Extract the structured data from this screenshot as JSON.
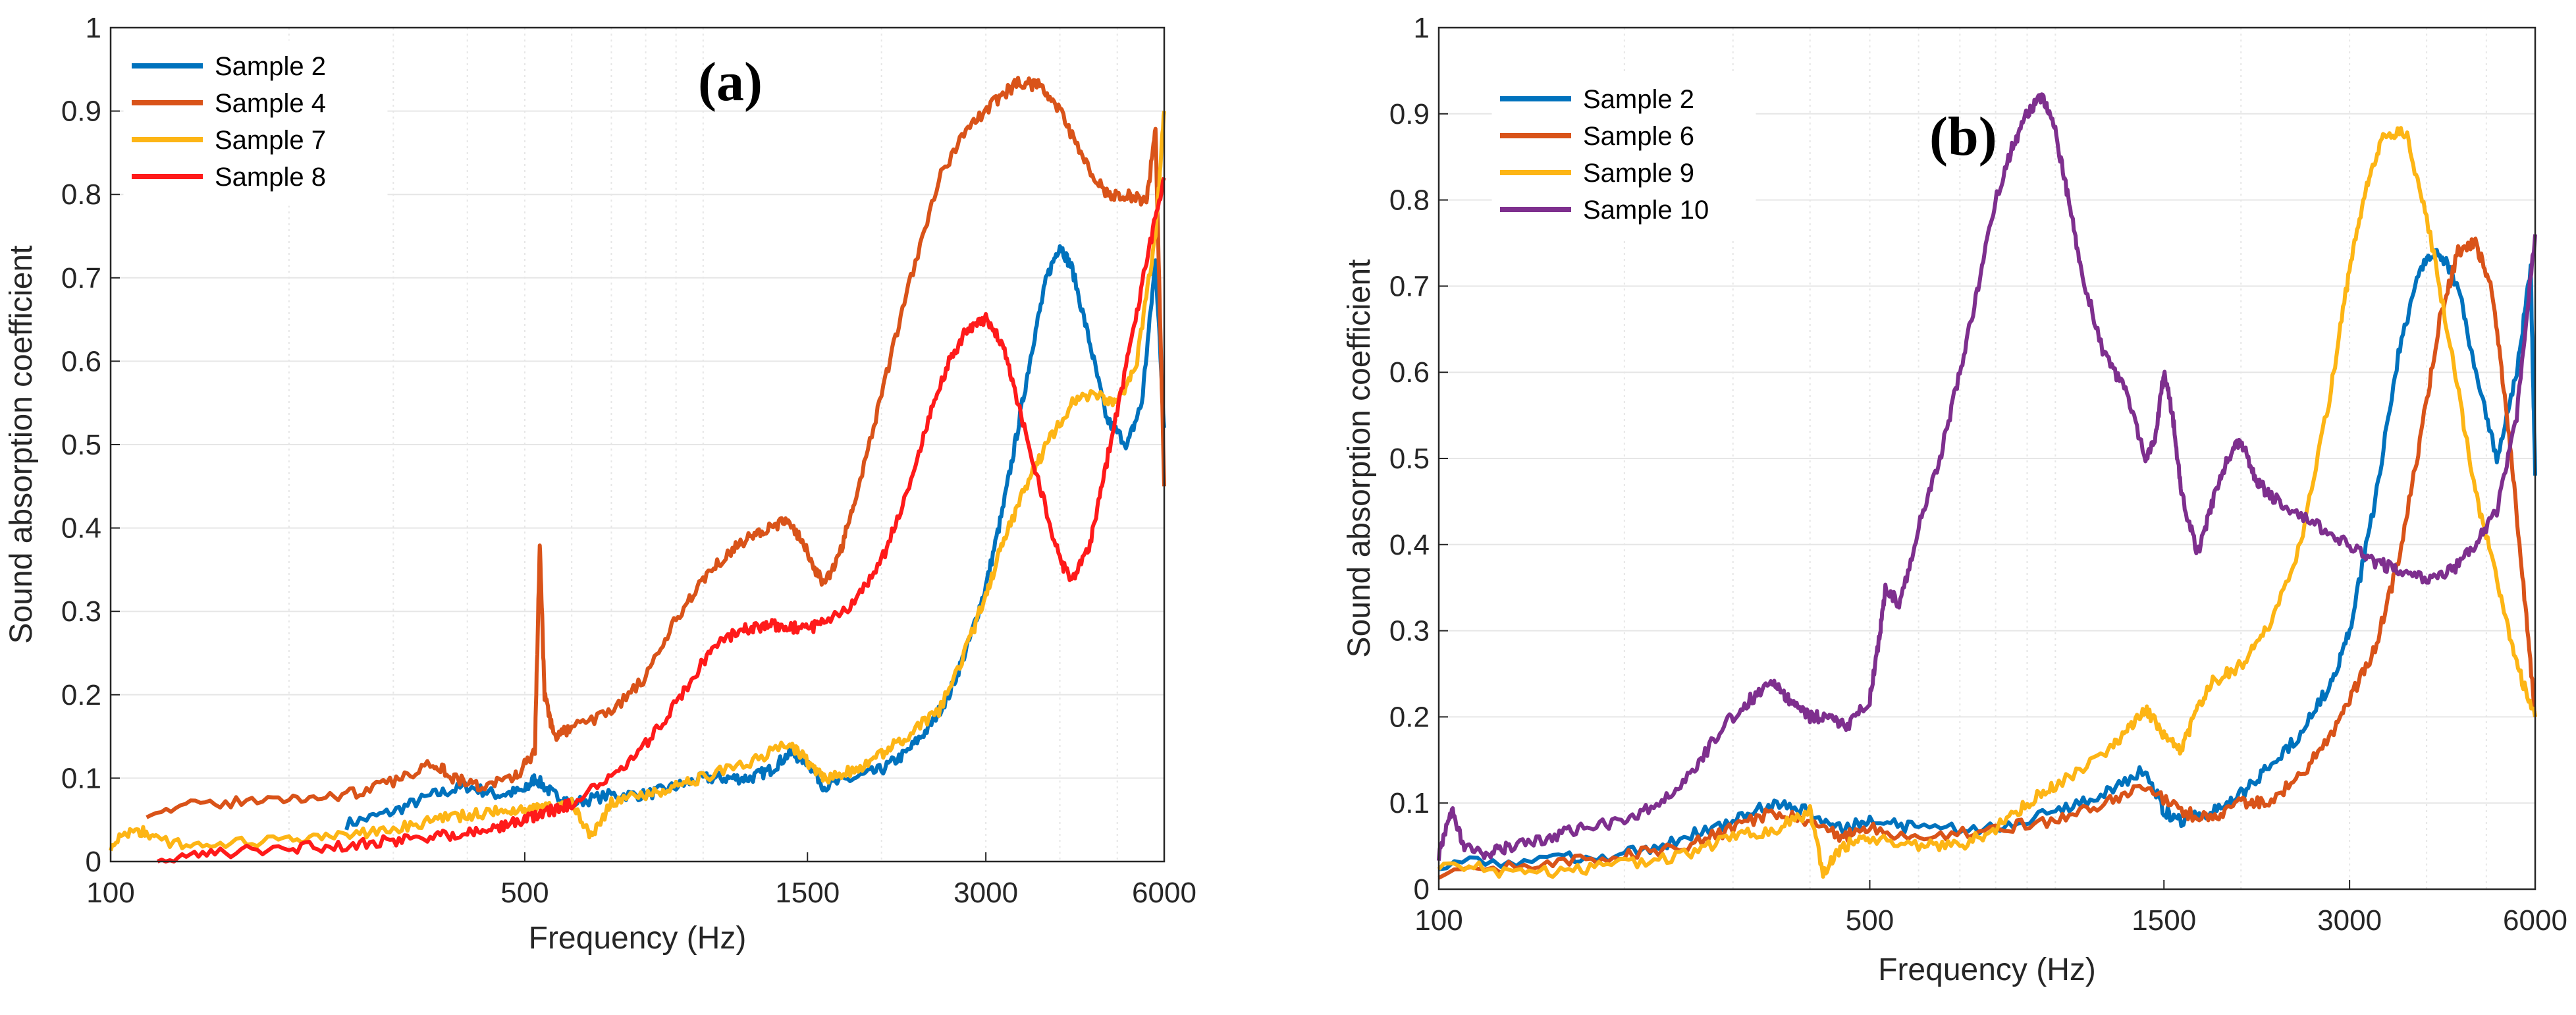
{
  "colors": {
    "blue": "#0072BD",
    "orange": "#D95319",
    "yellow": "#FDB515",
    "red": "#FF1A1A",
    "purple": "#7E2F8E",
    "grid": "#E6E6E6",
    "axis": "#262626"
  },
  "chart_data": [
    {
      "type": "line",
      "panel_label": "(a)",
      "xlabel": "Frequency (Hz)",
      "ylabel": "Sound absorption coefficient",
      "xscale": "log",
      "xlim": [
        100,
        6000
      ],
      "ylim": [
        0,
        1
      ],
      "xticks": [
        100,
        500,
        1500,
        3000,
        6000
      ],
      "xtick_labels": [
        "100",
        "500",
        "1500",
        "3000",
        "6000"
      ],
      "yticks": [
        0,
        0.1,
        0.2,
        0.3,
        0.4,
        0.5,
        0.6,
        0.7,
        0.8,
        0.9,
        1
      ],
      "ytick_labels": [
        "0",
        "0.1",
        "0.2",
        "0.3",
        "0.4",
        "0.5",
        "0.6",
        "0.7",
        "0.8",
        "0.9",
        "1"
      ],
      "grid": true,
      "legend_position": "top-left",
      "series": [
        {
          "name": "Sample 2",
          "color": "#0072BD",
          "x": [
            250,
            300,
            350,
            400,
            450,
            500,
            520,
            560,
            600,
            700,
            800,
            900,
            1000,
            1100,
            1200,
            1300,
            1400,
            1500,
            1600,
            1800,
            2000,
            2200,
            2400,
            2600,
            2800,
            3000,
            3200,
            3400,
            3600,
            3800,
            4000,
            4200,
            4500,
            4800,
            5200,
            5500,
            5800,
            6000
          ],
          "y": [
            0.045,
            0.06,
            0.08,
            0.09,
            0.08,
            0.085,
            0.1,
            0.08,
            0.07,
            0.08,
            0.08,
            0.09,
            0.1,
            0.1,
            0.1,
            0.11,
            0.13,
            0.12,
            0.09,
            0.1,
            0.11,
            0.13,
            0.16,
            0.2,
            0.26,
            0.33,
            0.42,
            0.52,
            0.62,
            0.7,
            0.74,
            0.71,
            0.62,
            0.53,
            0.5,
            0.55,
            0.72,
            0.52
          ]
        },
        {
          "name": "Sample 4",
          "color": "#D95319",
          "x": [
            115,
            150,
            200,
            250,
            300,
            350,
            380,
            420,
            480,
            520,
            530,
            540,
            560,
            600,
            700,
            800,
            900,
            1000,
            1100,
            1200,
            1300,
            1400,
            1500,
            1600,
            1700,
            1800,
            2000,
            2200,
            2500,
            2800,
            3100,
            3400,
            3700,
            4000,
            4400,
            4800,
            5200,
            5600,
            5800,
            6000
          ],
          "y": [
            0.06,
            0.07,
            0.075,
            0.08,
            0.095,
            0.12,
            0.1,
            0.09,
            0.1,
            0.13,
            0.38,
            0.2,
            0.15,
            0.16,
            0.18,
            0.22,
            0.29,
            0.34,
            0.37,
            0.39,
            0.4,
            0.41,
            0.37,
            0.33,
            0.37,
            0.43,
            0.56,
            0.68,
            0.82,
            0.88,
            0.91,
            0.935,
            0.93,
            0.9,
            0.84,
            0.8,
            0.8,
            0.79,
            0.88,
            0.45
          ]
        },
        {
          "name": "Sample 7",
          "color": "#FDB515",
          "x": [
            100,
            110,
            120,
            150,
            200,
            250,
            300,
            350,
            400,
            450,
            500,
            550,
            600,
            650,
            700,
            800,
            900,
            1000,
            1200,
            1400,
            1500,
            1600,
            1800,
            2000,
            2200,
            2500,
            2800,
            3000,
            3200,
            3500,
            3800,
            4200,
            4600,
            5000,
            5400,
            5800,
            6000
          ],
          "y": [
            0.02,
            0.04,
            0.025,
            0.02,
            0.025,
            0.03,
            0.04,
            0.05,
            0.055,
            0.06,
            0.06,
            0.065,
            0.07,
            0.03,
            0.07,
            0.08,
            0.09,
            0.1,
            0.12,
            0.14,
            0.12,
            0.1,
            0.11,
            0.13,
            0.15,
            0.18,
            0.26,
            0.32,
            0.38,
            0.45,
            0.5,
            0.55,
            0.56,
            0.55,
            0.6,
            0.75,
            0.9
          ]
        },
        {
          "name": "Sample 8",
          "color": "#FF1A1A",
          "x": [
            120,
            150,
            200,
            250,
            300,
            350,
            400,
            450,
            500,
            550,
            600,
            700,
            800,
            900,
            1000,
            1100,
            1200,
            1300,
            1400,
            1500,
            1600,
            1800,
            2000,
            2200,
            2400,
            2600,
            2800,
            3000,
            3200,
            3400,
            3700,
            4000,
            4200,
            4500,
            4800,
            5200,
            5600,
            6000
          ],
          "y": [
            0.0,
            0.01,
            0.015,
            0.02,
            0.025,
            0.03,
            0.035,
            0.04,
            0.05,
            0.06,
            0.07,
            0.1,
            0.14,
            0.19,
            0.24,
            0.27,
            0.28,
            0.285,
            0.28,
            0.28,
            0.285,
            0.31,
            0.36,
            0.44,
            0.53,
            0.6,
            0.64,
            0.65,
            0.62,
            0.55,
            0.45,
            0.36,
            0.34,
            0.38,
            0.48,
            0.6,
            0.72,
            0.82
          ]
        }
      ]
    },
    {
      "type": "line",
      "panel_label": "(b)",
      "xlabel": "Frequency (Hz)",
      "ylabel": "Sound absorption coefficient",
      "xscale": "log",
      "xlim": [
        100,
        6000
      ],
      "ylim": [
        0,
        1
      ],
      "xticks": [
        100,
        500,
        1500,
        3000,
        6000
      ],
      "xtick_labels": [
        "100",
        "500",
        "1500",
        "3000",
        "6000"
      ],
      "yticks": [
        0,
        0.1,
        0.2,
        0.3,
        0.4,
        0.5,
        0.6,
        0.7,
        0.8,
        0.9,
        1
      ],
      "ytick_labels": [
        "0",
        "0.1",
        "0.2",
        "0.3",
        "0.4",
        "0.5",
        "0.6",
        "0.7",
        "0.8",
        "0.9",
        "1"
      ],
      "grid": true,
      "legend_position": "top-left",
      "series": [
        {
          "name": "Sample 2",
          "color": "#0072BD",
          "x": [
            100,
            150,
            200,
            250,
            300,
            350,
            400,
            450,
            500,
            600,
            800,
            1000,
            1200,
            1400,
            1500,
            1600,
            1800,
            2000,
            2200,
            2500,
            2800,
            3000,
            3300,
            3600,
            3900,
            4200,
            4500,
            4800,
            5200,
            5600,
            5900,
            6000
          ],
          "y": [
            0.03,
            0.035,
            0.04,
            0.06,
            0.08,
            0.1,
            0.09,
            0.07,
            0.08,
            0.07,
            0.07,
            0.09,
            0.11,
            0.14,
            0.09,
            0.08,
            0.09,
            0.11,
            0.14,
            0.18,
            0.24,
            0.3,
            0.45,
            0.62,
            0.72,
            0.74,
            0.7,
            0.6,
            0.5,
            0.6,
            0.72,
            0.48
          ]
        },
        {
          "name": "Sample 6",
          "color": "#D95319",
          "x": [
            100,
            150,
            200,
            250,
            300,
            350,
            400,
            450,
            500,
            600,
            800,
            1000,
            1200,
            1400,
            1600,
            1800,
            2000,
            2200,
            2500,
            2800,
            3000,
            3300,
            3600,
            3900,
            4200,
            4500,
            4800,
            5100,
            5400,
            5700,
            6000
          ],
          "y": [
            0.02,
            0.03,
            0.04,
            0.05,
            0.07,
            0.09,
            0.08,
            0.06,
            0.07,
            0.06,
            0.07,
            0.08,
            0.1,
            0.12,
            0.09,
            0.08,
            0.1,
            0.1,
            0.13,
            0.18,
            0.22,
            0.28,
            0.38,
            0.52,
            0.66,
            0.74,
            0.75,
            0.7,
            0.55,
            0.38,
            0.2
          ]
        },
        {
          "name": "Sample 9",
          "color": "#FDB515",
          "x": [
            100,
            130,
            160,
            200,
            250,
            300,
            350,
            400,
            420,
            450,
            500,
            600,
            700,
            800,
            900,
            1000,
            1200,
            1300,
            1400,
            1500,
            1600,
            1700,
            1800,
            2000,
            2200,
            2500,
            2800,
            3000,
            3200,
            3400,
            3700,
            4000,
            4400,
            4800,
            5200,
            5600,
            6000
          ],
          "y": [
            0.03,
            0.02,
            0.02,
            0.03,
            0.04,
            0.06,
            0.07,
            0.09,
            0.02,
            0.05,
            0.06,
            0.05,
            0.05,
            0.07,
            0.1,
            0.12,
            0.16,
            0.18,
            0.21,
            0.18,
            0.16,
            0.21,
            0.24,
            0.26,
            0.3,
            0.4,
            0.58,
            0.72,
            0.82,
            0.87,
            0.88,
            0.78,
            0.62,
            0.46,
            0.36,
            0.26,
            0.2
          ]
        },
        {
          "name": "Sample 10",
          "color": "#7E2F8E",
          "x": [
            100,
            105,
            110,
            120,
            130,
            150,
            170,
            200,
            230,
            260,
            290,
            320,
            350,
            370,
            400,
            430,
            460,
            500,
            520,
            530,
            560,
            600,
            650,
            700,
            750,
            800,
            850,
            900,
            950,
            1000,
            1050,
            1100,
            1200,
            1300,
            1400,
            1450,
            1500,
            1550,
            1600,
            1700,
            1800,
            1900,
            2000,
            2100,
            2200,
            2400,
            2700,
            3000,
            3300,
            3600,
            4000,
            4400,
            4800,
            5200,
            5600,
            6000
          ],
          "y": [
            0.04,
            0.09,
            0.05,
            0.04,
            0.05,
            0.06,
            0.07,
            0.08,
            0.1,
            0.14,
            0.19,
            0.22,
            0.24,
            0.22,
            0.2,
            0.2,
            0.19,
            0.22,
            0.3,
            0.35,
            0.33,
            0.42,
            0.5,
            0.6,
            0.7,
            0.8,
            0.86,
            0.9,
            0.92,
            0.88,
            0.8,
            0.72,
            0.62,
            0.58,
            0.5,
            0.52,
            0.6,
            0.55,
            0.46,
            0.39,
            0.45,
            0.5,
            0.52,
            0.48,
            0.46,
            0.44,
            0.42,
            0.4,
            0.38,
            0.37,
            0.36,
            0.37,
            0.4,
            0.44,
            0.55,
            0.76
          ]
        }
      ]
    }
  ]
}
